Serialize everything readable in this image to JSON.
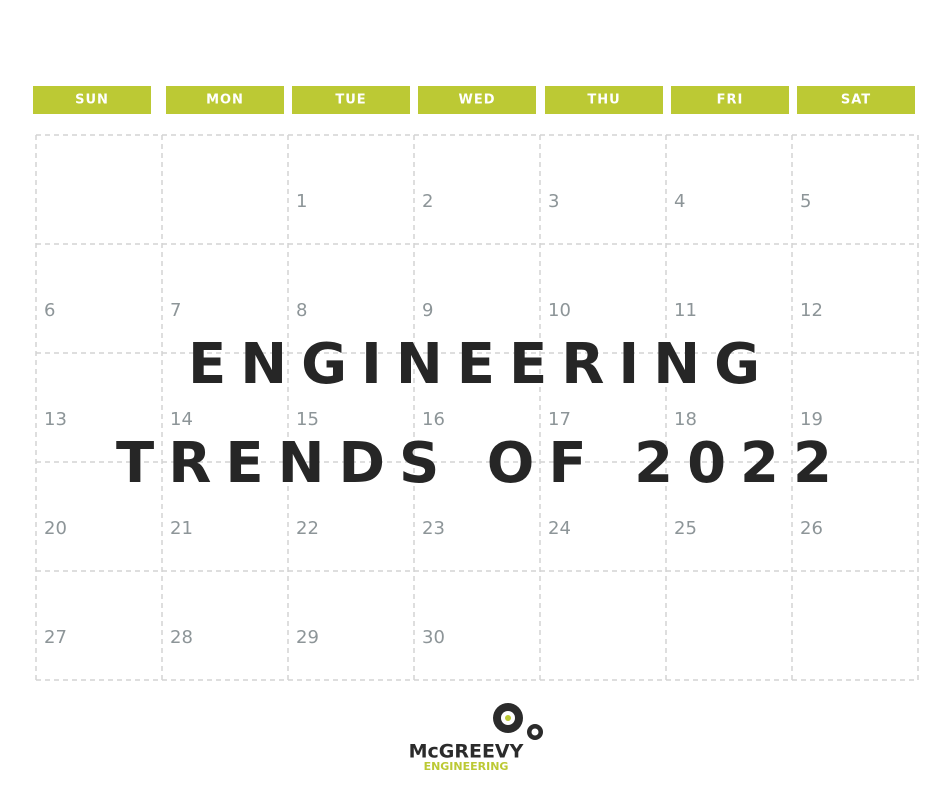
{
  "calendar": {
    "days": [
      "SUN",
      "MON",
      "TUE",
      "WED",
      "THU",
      "FRI",
      "SAT"
    ],
    "weeks": [
      [
        null,
        null,
        1,
        2,
        3,
        4,
        5
      ],
      [
        6,
        7,
        8,
        9,
        10,
        11,
        12
      ],
      [
        13,
        14,
        15,
        16,
        17,
        18,
        19
      ],
      [
        20,
        21,
        22,
        23,
        24,
        25,
        26
      ],
      [
        27,
        28,
        29,
        30,
        null,
        null,
        null
      ]
    ]
  },
  "title": {
    "line1": "ENGINEERING",
    "line2": "TRENDS OF 2022"
  },
  "logo": {
    "name": "McGREEVY",
    "tagline": "ENGINEERING"
  }
}
